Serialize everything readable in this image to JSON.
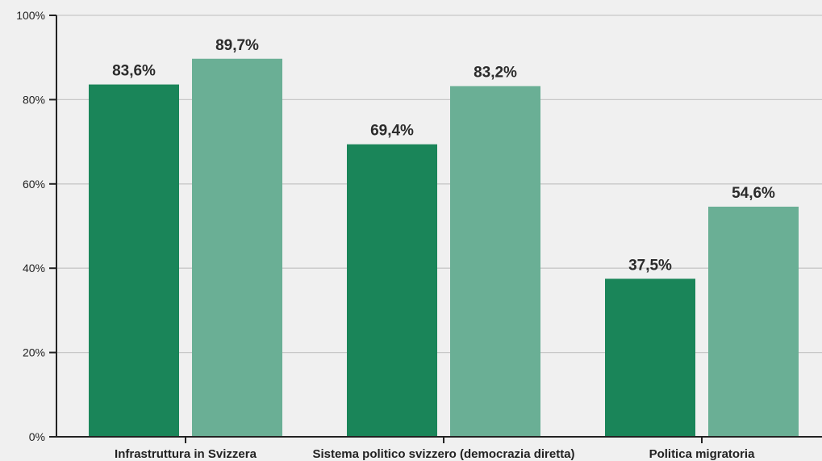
{
  "chart_data": {
    "type": "bar",
    "categories": [
      "Infrastruttura in Svizzera",
      "Sistema politico svizzero (democrazia diretta)",
      "Politica migratoria"
    ],
    "series": [
      {
        "values": [
          83.6,
          69.4,
          37.5
        ],
        "labels": [
          "83,6%",
          "69,4%",
          "37,5%"
        ],
        "color": "#1a8559"
      },
      {
        "values": [
          89.7,
          83.2,
          54.6
        ],
        "labels": [
          "89,7%",
          "83,2%",
          "54,6%"
        ],
        "color": "#6aaf95"
      }
    ],
    "ylim": [
      0,
      100
    ],
    "yticks": [
      0,
      20,
      40,
      60,
      80,
      100
    ],
    "ytick_labels": [
      "0%",
      "20%",
      "40%",
      "60%",
      "80%",
      "100%"
    ],
    "grid": true,
    "colors": {
      "background": "#f0f0f0",
      "grid": "#c8c8c8",
      "axis": "#222222"
    }
  }
}
